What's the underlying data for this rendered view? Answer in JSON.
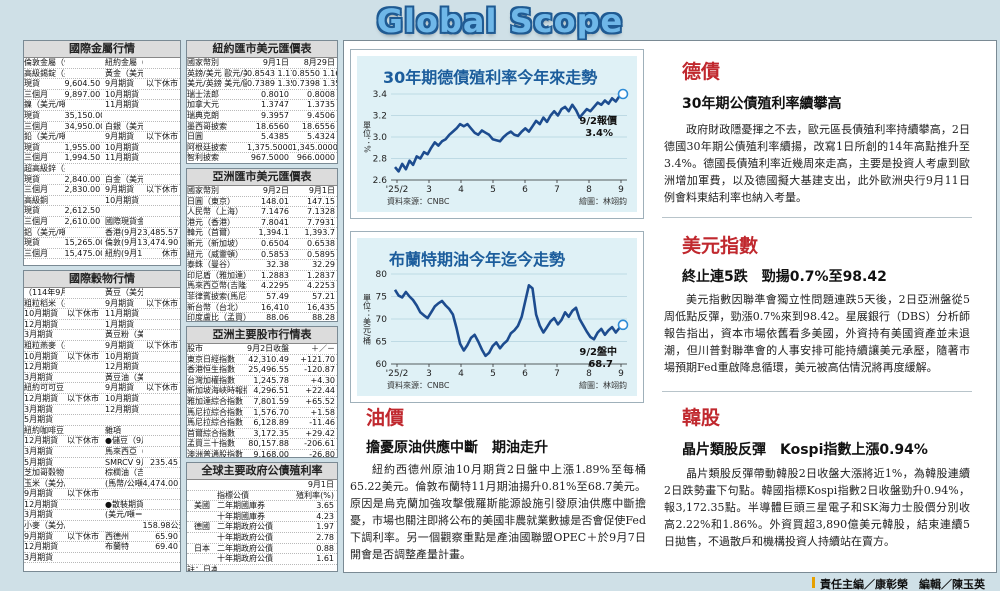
{
  "masthead": {
    "title": "Global Scope"
  },
  "metals": {
    "title": "國際金屬行情",
    "rows": [
      [
        "倫敦金屬（9月1日收盤）",
        "",
        "紐約金屬（9月1日收盤）",
        ""
      ],
      [
        "高級錫錠（美元/噸）",
        "",
        "黃金（美元/英兩）",
        ""
      ],
      [
        "現貨",
        "9,604.50",
        "9月期貨",
        "以下休市"
      ],
      [
        "三個月",
        "9,897.00",
        "10月期貨",
        ""
      ],
      [
        "鎳（美元/噸）",
        "",
        "11月期貨",
        ""
      ],
      [
        "現貨",
        "35,150.00",
        "",
        ""
      ],
      [
        "三個月",
        "34,950.00",
        "白銀（美元/英兩）",
        ""
      ],
      [
        "鉛（美元/噸）",
        "",
        "9月期貨",
        "以下休市"
      ],
      [
        "現貨",
        "1,955.00",
        "10月期貨",
        ""
      ],
      [
        "三個月",
        "1,994.50",
        "11月期貨",
        ""
      ],
      [
        "超高級鋅（美元/噸）",
        "",
        "",
        ""
      ],
      [
        "現貨",
        "2,840.00",
        "白金（美元/英兩）",
        ""
      ],
      [
        "三個月",
        "2,830.00",
        "9月期貨",
        "以下休市"
      ],
      [
        "高級銅",
        "",
        "10月期貨",
        ""
      ],
      [
        "現貨",
        "2,612.50",
        "",
        ""
      ],
      [
        "三個月",
        "2,610.00",
        "國際現貨金價",
        ""
      ],
      [
        "鋁（美元/噸）",
        "",
        "香港(9月2日)",
        "3,485.57"
      ],
      [
        "現貨",
        "15,265.00",
        "倫敦(9月1日)",
        "3,474.90"
      ],
      [
        "三個月",
        "15,475.00",
        "紐約(9月1日)",
        "休市"
      ]
    ]
  },
  "grains": {
    "title": "國際穀物行情",
    "rows": [
      [
        "（114年9月1日收盤）",
        "",
        "黃豆（美分/英斗）",
        ""
      ],
      [
        "粗粒稻米（美元/磅）",
        "",
        "9月期貨",
        "以下休市"
      ],
      [
        "10月期貨",
        "以下休市",
        "11月期貨",
        ""
      ],
      [
        "12月期貨",
        "",
        "1月期貨",
        ""
      ],
      [
        "3月期貨",
        "",
        "黃豆粉（美元/噸）",
        ""
      ],
      [
        "粗粒燕麥（美分/英斗）",
        "",
        "9月期貨",
        "以下休市"
      ],
      [
        "10月期貨",
        "以下休市",
        "10月期貨",
        ""
      ],
      [
        "12月期貨",
        "",
        "12月期貨",
        ""
      ],
      [
        "3月期貨",
        "",
        "黃豆油（美分/磅）",
        ""
      ],
      [
        "紐約可可豆（美元/噸）",
        "",
        "9月期貨",
        "以下休市"
      ],
      [
        "12月期貨",
        "以下休市",
        "10月期貨",
        ""
      ],
      [
        "3月期貨",
        "",
        "12月期貨",
        ""
      ],
      [
        "5月期貨",
        "",
        "",
        ""
      ],
      [
        "紐約咖啡豆（美分/磅）",
        "",
        "雜項",
        ""
      ],
      [
        "12月期貨",
        "以下休市",
        "●儲豆（9月2日收盤）",
        ""
      ],
      [
        "3月期貨",
        "",
        "馬來西亞（美元/噸）",
        ""
      ],
      [
        "5月期貨",
        "",
        "SMRCV 9月",
        "235.45"
      ],
      [
        "芝加哥穀物（9月1日收盤）",
        "",
        "棕櫚油（吉隆坡）",
        ""
      ],
      [
        "玉米（美分/英斗）",
        "",
        "(馬幣/公噸)",
        "4,474.00"
      ],
      [
        "9月期貨",
        "以下休市",
        "",
        ""
      ],
      [
        "12月期貨",
        "",
        "●散裝期貨（9月2日收盤）",
        ""
      ],
      [
        "3月期貨",
        "",
        "(美元/噸＝42美元加侖)",
        ""
      ],
      [
        "小麥（美分/英斗）",
        "",
        "",
        "158.98公升"
      ],
      [
        "9月期貨",
        "以下休市",
        "西德州",
        "65.90"
      ],
      [
        "12月期貨",
        "",
        "布蘭特",
        "69.40"
      ],
      [
        "3月期貨",
        "",
        "",
        ""
      ]
    ]
  },
  "ny_fx": {
    "title": "紐約匯市美元匯價表",
    "rows": [
      [
        "國家幣別",
        "9月1日",
        "8月29日"
      ],
      [
        "英鎊/美元 歐元/美元",
        "0.8543 1.1705",
        "0.8550 1.1696"
      ],
      [
        "美元/英鎊 美元/歐元",
        "0.7389 1.3536",
        "0.7398 1.3516"
      ],
      [
        "瑞士法郎",
        "0.8010",
        "0.8008"
      ],
      [
        "加拿大元",
        "1.3747",
        "1.3735"
      ],
      [
        "瑞典克朗",
        "9.3957",
        "9.4506"
      ],
      [
        "墨西哥披索",
        "18.6560",
        "18.6556"
      ],
      [
        "日圓",
        "5.4385",
        "5.4324"
      ],
      [
        "阿根廷披索",
        "1,375.5000",
        "1,345.0000"
      ],
      [
        "智利披索",
        "967.5000",
        "966.0000"
      ],
      [
        "南非",
        "17.5955",
        "17.6454"
      ],
      [
        "沙烏地阿拉伯",
        "3.7525",
        "3.7523"
      ]
    ]
  },
  "asia_fx": {
    "title": "亞洲匯市美元匯價表",
    "rows": [
      [
        "國家幣別",
        "9月2日",
        "9月1日"
      ],
      [
        "日圓（東京）",
        "148.01",
        "147.15"
      ],
      [
        "人民幣（上海）",
        "7.1476",
        "7.1328"
      ],
      [
        "港元（香港）",
        "7.8041",
        "7.7931"
      ],
      [
        "韓元（首爾）",
        "1,394.1",
        "1,393.7"
      ],
      [
        "新元（新加坡）",
        "0.6504",
        "0.6538"
      ],
      [
        "紐元（威靈頓）",
        "0.5853",
        "0.5895"
      ],
      [
        "泰銖（曼谷）",
        "32.38",
        "32.29"
      ],
      [
        "印尼盾（雅加達）",
        "1.2883",
        "1.2837"
      ],
      [
        "馬來西亞幣(吉隆坡)",
        "4.2295",
        "4.2253"
      ],
      [
        "菲律賓披索(馬尼拉)",
        "57.49",
        "57.21"
      ],
      [
        "新台幣（台北）",
        "16,410",
        "16,435"
      ],
      [
        "印度盧比（孟買）",
        "88.06",
        "88.28"
      ],
      [
        "註：所有匯率為一美元兌換各國貨幣，其餘均以一單位貨幣兌美元",
        "",
        ""
      ]
    ]
  },
  "asia_stock": {
    "title": "亞洲主要股市行情表",
    "rows": [
      [
        "股市",
        "9月2日收盤",
        "＋／－"
      ],
      [
        "東京日經指數",
        "42,310.49",
        "+121.70"
      ],
      [
        "香港恒生指數",
        "25,496.55",
        "-120.87"
      ],
      [
        "台灣加權指數",
        "1,245.78",
        "+4.30"
      ],
      [
        "新加坡海峽時報指數",
        "4,296.51",
        "+22.44"
      ],
      [
        "雅加達綜合指數",
        "7,801.59",
        "+65.52"
      ],
      [
        "馬尼拉綜合指數",
        "1,576.70",
        "+1.58"
      ],
      [
        "馬尼拉綜合指數",
        "6,128.89",
        "-11.46"
      ],
      [
        "首爾綜合指數",
        "3,172.35",
        "+29.42"
      ],
      [
        "孟買三十指數",
        "80,157.88",
        "-206.61"
      ],
      [
        "澳洲普通股指數",
        "9,168.00",
        "-26.80"
      ],
      [
        "紐西蘭五十種指數",
        "13,133.16",
        "+62.71"
      ]
    ]
  },
  "bonds": {
    "title": "全球主要政府公債殖利率",
    "date": "9月1日",
    "rows": [
      [
        "",
        "指標公債",
        "殖利率(%)"
      ],
      [
        "美國",
        "二年期國庫券",
        "3.65"
      ],
      [
        "",
        "十年期國庫券",
        "4.23"
      ],
      [
        "德國",
        "二年期政府公債",
        "1.97"
      ],
      [
        "",
        "十年期政府公債",
        "2.78"
      ],
      [
        "日本",
        "二年期政府公債",
        "0.88"
      ],
      [
        "",
        "十年期政府公債",
        "1.61"
      ],
      [
        "註：日本公債殖利率為9月2日之數據",
        "",
        ""
      ]
    ]
  },
  "chart_data": [
    {
      "type": "line",
      "title": "30年期德債殖利率今年來走勢",
      "ylabel": "單位：%",
      "ylim": [
        2.6,
        3.4
      ],
      "yticks": [
        2.6,
        2.8,
        3.0,
        3.2,
        3.4
      ],
      "xticks": [
        "'25/2",
        "3",
        "4",
        "5",
        "6",
        "7",
        "8",
        "9"
      ],
      "annotation": "9/2報價 3.4%",
      "source": "資料來源：CNBC",
      "editor": "繪圖：林翊鈞",
      "series": [
        {
          "values": [
            2.72,
            2.68,
            2.75,
            2.7,
            2.78,
            2.74,
            2.82,
            2.8,
            2.86,
            2.84,
            2.9,
            2.95,
            2.92,
            2.96,
            2.98,
            3.02,
            3.05,
            3.08,
            3.12,
            3.1,
            3.12,
            3.08,
            3.04,
            3.02,
            3.06,
            3.04,
            3.02,
            2.98,
            2.97,
            2.96,
            3.0,
            3.03,
            3.05,
            3.02,
            3.01,
            3.05,
            3.08,
            3.05,
            3.1,
            3.15,
            3.12,
            3.18,
            3.14,
            3.2,
            3.24,
            3.2,
            3.26,
            3.28,
            3.24,
            3.3,
            3.25,
            3.18,
            3.22,
            3.26,
            3.24,
            3.28,
            3.32,
            3.3,
            3.34,
            3.31,
            3.36,
            3.33,
            3.38,
            3.4
          ]
        }
      ]
    },
    {
      "type": "line",
      "title": "布蘭特期油今年迄今走勢",
      "ylabel": "單位：美元/桶",
      "ylim": [
        60,
        80
      ],
      "yticks": [
        60,
        65,
        70,
        75,
        80
      ],
      "xticks": [
        "'25/2",
        "3",
        "4",
        "5",
        "6",
        "7",
        "8",
        "9"
      ],
      "annotation": "9/2盤中 68.7",
      "source": "資料來源：CNBC",
      "editor": "繪圖：林翊鈞",
      "series": [
        {
          "values": [
            76.5,
            75.2,
            74.8,
            76.0,
            75.0,
            74.2,
            73.0,
            71.5,
            70.8,
            70.2,
            71.5,
            72.8,
            73.5,
            74.0,
            73.0,
            72.2,
            71.0,
            68.0,
            64.5,
            63.0,
            64.2,
            65.8,
            66.5,
            65.0,
            63.2,
            61.8,
            62.5,
            64.0,
            64.8,
            63.5,
            64.5,
            65.2,
            66.8,
            67.5,
            68.5,
            70.5,
            74.0,
            77.5,
            76.8,
            71.0,
            68.5,
            67.0,
            68.2,
            69.5,
            70.2,
            68.8,
            69.8,
            71.5,
            70.5,
            71.8,
            72.5,
            70.0,
            68.6,
            67.2,
            66.0,
            65.5,
            67.0,
            67.8,
            66.5,
            67.5,
            68.2,
            67.0,
            68.0,
            68.7
          ]
        }
      ]
    }
  ],
  "sections": {
    "bund": {
      "category": "德債",
      "headline": "30年期公債殖利率續攀高",
      "body": "政府財政隱憂揮之不去，歐元區長債殖利率持續攀高，2日德國30年期公債殖利率續揚，改寫1日所創的14年高點推升至3.4%。德國長債殖利率近幾周來走高，主要是投資人考慮到歐洲增加軍費，以及德國擬大基建支出，此外歐洲央行9月11日例會料東結利率也納入考量。"
    },
    "dxy": {
      "category": "美元指數",
      "headline": "終止連5跌　勁揚0.7%至98.42",
      "body": "美元指數因聯準會獨立性問題連跌5天後，2日亞洲盤從5周低點反彈，勁漲0.7%來到98.42。星展銀行（DBS）分析師報告指出，資本市場依舊看多美國，外資持有美國資產並未退潮，但川普對聯準會的人事安排可能持續讓美元承壓，隨著市場預期Fed重啟降息循環，美元被高估情況將再度緩解。"
    },
    "oil": {
      "category": "油價",
      "headline": "擔憂原油供應中斷　期油走升",
      "body": "紐約西德州原油10月期貨2日盤中上漲1.89%至每桶65.22美元。倫敦布蘭特11月期油揚升0.81%至68.7美元。原因是烏克蘭加強攻擊俄羅斯能源設施引發原油供應中斷擔憂，市場也關注即將公布的美國非農就業數據是否會促使Fed下調利率。另一個觀察重點是產油國聯盟OPEC＋於9月7日開會是否調整產量計畫。"
    },
    "kospi": {
      "category": "韓股",
      "headline": "晶片類股反彈　Kospi指數上漲0.94%",
      "body": "晶片類股反彈帶動韓股2日收盤大漲將近1%，為韓股連續2日跌勢畫下句點。韓國指標Kospi指數2日收盤勁升0.94%，報3,172.35點。半導體巨頭三星電子和SK海力士股價分別收高2.22%和1.86%。外資買超3,890億美元韓股，結束連續5日拋售，不過散戶和機構投資人持續站在賣方。"
    }
  },
  "credit": "責任主編／康彰榮　編輯／陳玉英",
  "colors": {
    "line": "#1d4c8f",
    "accent": "#c0282e",
    "chart_bg": "#dff1f6",
    "title_blue": "#1c5d9c"
  }
}
